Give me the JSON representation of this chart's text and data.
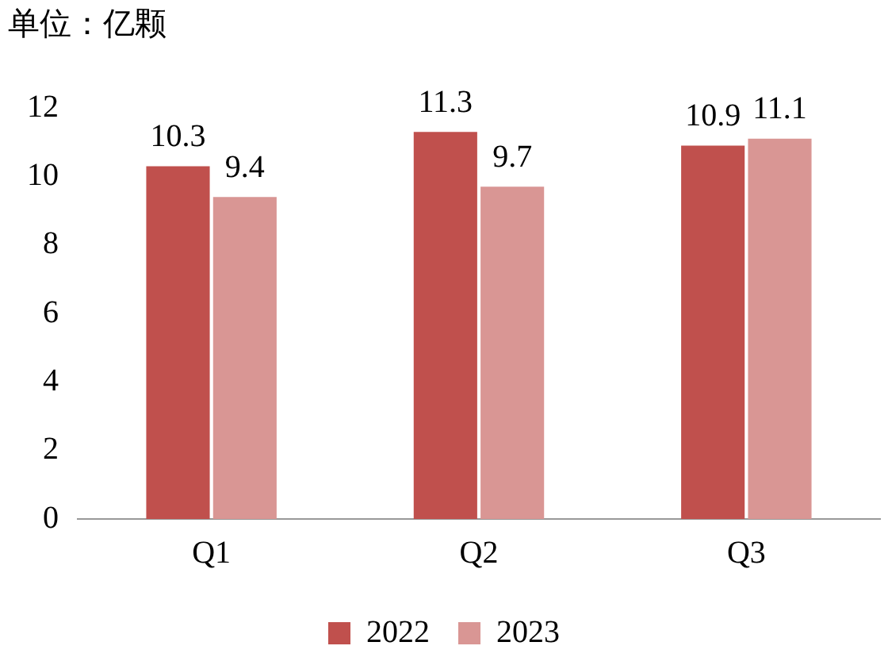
{
  "chart_data": {
    "type": "bar",
    "title": "单位：亿颗",
    "categories": [
      "Q1",
      "Q2",
      "Q3"
    ],
    "series": [
      {
        "name": "2022",
        "color": "#c0504d",
        "values": [
          10.3,
          11.3,
          10.9
        ]
      },
      {
        "name": "2023",
        "color": "#d99694",
        "values": [
          9.4,
          9.7,
          11.1
        ]
      }
    ],
    "ylim": [
      0,
      12
    ],
    "yticks": [
      0,
      2,
      4,
      6,
      8,
      10,
      12
    ],
    "grid": false,
    "legend": "bottom",
    "data_labels": true
  }
}
